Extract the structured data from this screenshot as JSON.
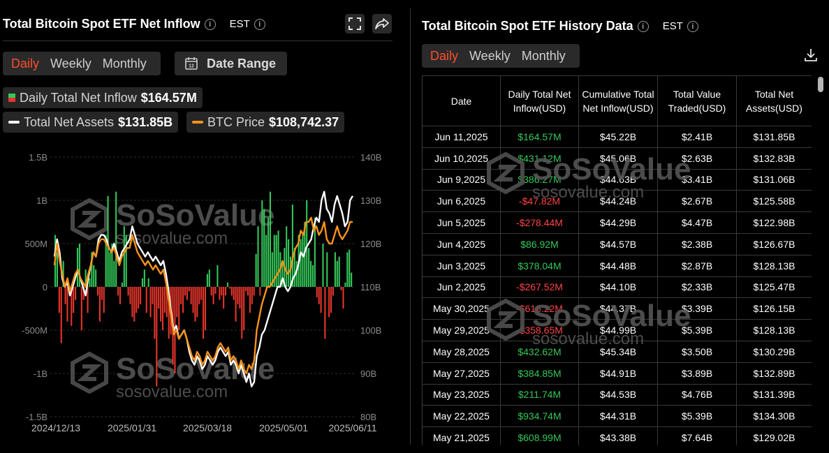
{
  "left": {
    "title": "Total Bitcoin Spot ETF Net Inflow",
    "timezone": "EST",
    "tabs": [
      "Daily",
      "Weekly",
      "Monthly"
    ],
    "active_tab": "Daily",
    "date_range_label": "Date Range",
    "legend": {
      "inflow_label": "Daily Total Net Inflow",
      "inflow_value": "$164.57M",
      "assets_label": "Total Net Assets",
      "assets_value": "$131.85B",
      "btc_label": "BTC Price",
      "btc_value": "$108,742.37"
    },
    "watermark": {
      "brand": "SoSoValue",
      "url": "sosovalue.com"
    }
  },
  "right": {
    "title": "Total Bitcoin Spot ETF History Data",
    "timezone": "EST",
    "tabs": [
      "Daily",
      "Weekly",
      "Monthly"
    ],
    "active_tab": "Daily",
    "columns": [
      "Date",
      "Daily Total Net Inflow(USD)",
      "Cumulative Total Net Inflow(USD)",
      "Total Value Traded(USD)",
      "Total Net Assets(USD)"
    ],
    "rows": [
      [
        "Jun 11,2025",
        "$164.57M",
        "$45.22B",
        "$2.41B",
        "$131.85B"
      ],
      [
        "Jun 10,2025",
        "$431.12M",
        "$45.06B",
        "$2.63B",
        "$132.83B"
      ],
      [
        "Jun 9,2025",
        "$386.27M",
        "$44.63B",
        "$3.41B",
        "$131.06B"
      ],
      [
        "Jun 6,2025",
        "-$47.82M",
        "$44.24B",
        "$2.67B",
        "$125.58B"
      ],
      [
        "Jun 5,2025",
        "-$278.44M",
        "$44.29B",
        "$4.47B",
        "$122.98B"
      ],
      [
        "Jun 4,2025",
        "$86.92M",
        "$44.57B",
        "$2.38B",
        "$126.67B"
      ],
      [
        "Jun 3,2025",
        "$378.04M",
        "$44.48B",
        "$2.87B",
        "$128.13B"
      ],
      [
        "Jun 2,2025",
        "-$267.52M",
        "$44.10B",
        "$2.33B",
        "$125.47B"
      ],
      [
        "May 30,2025",
        "-$616.22M",
        "$44.37B",
        "$3.39B",
        "$126.15B"
      ],
      [
        "May 29,2025",
        "-$358.65M",
        "$44.99B",
        "$5.39B",
        "$128.13B"
      ],
      [
        "May 28,2025",
        "$432.62M",
        "$45.34B",
        "$3.50B",
        "$130.29B"
      ],
      [
        "May 27,2025",
        "$384.85M",
        "$44.91B",
        "$3.89B",
        "$132.89B"
      ],
      [
        "May 23,2025",
        "$211.74M",
        "$44.53B",
        "$4.76B",
        "$131.39B"
      ],
      [
        "May 22,2025",
        "$934.74M",
        "$44.31B",
        "$5.39B",
        "$134.30B"
      ],
      [
        "May 21,2025",
        "$608.99M",
        "$43.38B",
        "$7.64B",
        "$129.02B"
      ]
    ],
    "watermark": {
      "brand": "SoSoValue",
      "url": "sosovalue.com"
    }
  },
  "colors": {
    "active_tab": "#ff4d2d",
    "inflow_positive": "#34c759",
    "inflow_negative": "#e5352b",
    "assets_line": "#ffffff",
    "btc_line": "#f7931a"
  },
  "chart_data": {
    "type": "bar",
    "x_tick_labels": [
      "2024/12/13",
      "2025/01/31",
      "2025/03/18",
      "2025/05/01",
      "2025/06/11"
    ],
    "left_axis": {
      "ticks": [
        "1.5B",
        "1B",
        "500M",
        "0",
        "-500M",
        "-1B",
        "-1.5B"
      ],
      "range_usd_millions": [
        -1500,
        1500
      ]
    },
    "right_axis": {
      "ticks": [
        "140B",
        "130B",
        "120B",
        "110B",
        "100B",
        "90B",
        "80B"
      ],
      "range_usd_billions": [
        80,
        140
      ]
    },
    "grid": true,
    "series": [
      {
        "name": "Daily Total Net Inflow",
        "kind": "bar",
        "axis": "left",
        "unit": "USD millions",
        "values": [
          600,
          400,
          -300,
          -650,
          300,
          -200,
          -400,
          -100,
          -450,
          -300,
          -150,
          450,
          500,
          -500,
          -150,
          200,
          -300,
          100,
          400,
          250,
          200,
          -100,
          -400,
          -150,
          -300,
          600,
          1050,
          400,
          500,
          300,
          1100,
          -100,
          -200,
          50,
          700,
          600,
          -100,
          -200,
          -350,
          -400,
          -300,
          -250,
          -200,
          100,
          200,
          -300,
          100,
          -350,
          -200,
          -600,
          -1150,
          -250,
          -400,
          -500,
          -300,
          -350,
          -600,
          -550,
          -900,
          -1000,
          -350,
          -500,
          -200,
          -300,
          -100,
          -150,
          -50,
          -200,
          -300,
          -400,
          -350,
          -200,
          -150,
          -600,
          -500,
          150,
          200,
          -100,
          -200,
          -80,
          250,
          -150,
          -100,
          -250,
          -100,
          50,
          -20,
          -100,
          -150,
          -400,
          -200,
          -250,
          -600,
          -500,
          -50,
          -100,
          -300,
          -200,
          -100,
          380,
          700,
          -100,
          1000,
          900,
          600,
          800,
          1100,
          400,
          600,
          600,
          650,
          400,
          300,
          450,
          700,
          550,
          350,
          950,
          450,
          300,
          600,
          550,
          600,
          750,
          1000,
          450,
          300,
          250,
          800,
          -120,
          -200,
          -300,
          500,
          -600,
          400,
          -350,
          -300,
          -100,
          400,
          300,
          350,
          -40,
          -250,
          50,
          400,
          430,
          165
        ]
      },
      {
        "name": "Total Net Assets",
        "kind": "line",
        "axis": "right",
        "unit": "USD billions",
        "values": [
          117,
          121,
          118,
          112,
          110,
          111,
          108,
          110,
          112,
          114,
          112,
          110,
          108,
          112,
          115,
          118,
          117,
          121,
          122,
          122,
          121,
          119,
          118,
          120,
          118,
          116,
          118,
          119,
          120,
          121,
          124,
          122,
          120,
          119,
          118,
          117,
          118,
          117,
          116,
          117,
          116,
          115,
          116,
          113,
          109,
          104,
          100,
          101,
          98,
          99,
          100,
          98,
          95,
          93,
          92,
          94,
          93,
          91,
          92,
          94,
          93,
          92,
          93,
          95,
          96,
          95,
          94,
          95,
          92,
          93,
          92,
          90,
          92,
          90,
          88,
          90,
          87,
          88,
          94,
          96,
          99,
          100,
          102,
          104,
          106,
          108,
          110,
          110,
          112,
          110,
          109,
          110,
          112,
          113,
          115,
          118,
          117,
          119,
          120,
          121,
          124,
          126,
          125,
          130,
          132,
          128,
          127,
          125,
          129,
          131,
          129,
          127,
          124,
          125,
          130,
          131
        ]
      },
      {
        "name": "BTC Price",
        "kind": "line",
        "axis": "right",
        "unit": "USD thousands",
        "values": [
          99,
          104,
          100,
          97,
          94,
          96,
          93,
          95,
          97,
          98,
          96,
          95,
          94,
          97,
          99,
          102,
          101,
          104,
          105,
          105,
          104,
          103,
          102,
          103,
          101,
          99,
          101,
          102,
          103,
          103,
          106,
          104,
          102,
          101,
          100,
          99,
          100,
          99,
          98,
          99,
          98,
          97,
          98,
          95,
          91,
          87,
          83,
          84,
          82,
          83,
          84,
          82,
          80,
          78,
          77,
          79,
          78,
          76,
          77,
          79,
          78,
          77,
          78,
          80,
          81,
          80,
          79,
          80,
          77,
          78,
          77,
          75,
          77,
          75,
          74,
          76,
          75,
          77,
          84,
          87,
          90,
          92,
          94,
          94,
          95,
          96,
          97,
          98,
          100,
          98,
          97,
          98,
          101,
          103,
          104,
          107,
          106,
          109,
          109,
          110,
          107,
          108,
          106,
          107,
          109,
          105,
          104,
          104,
          106,
          108,
          106,
          105,
          106,
          107,
          109,
          109
        ]
      }
    ]
  }
}
